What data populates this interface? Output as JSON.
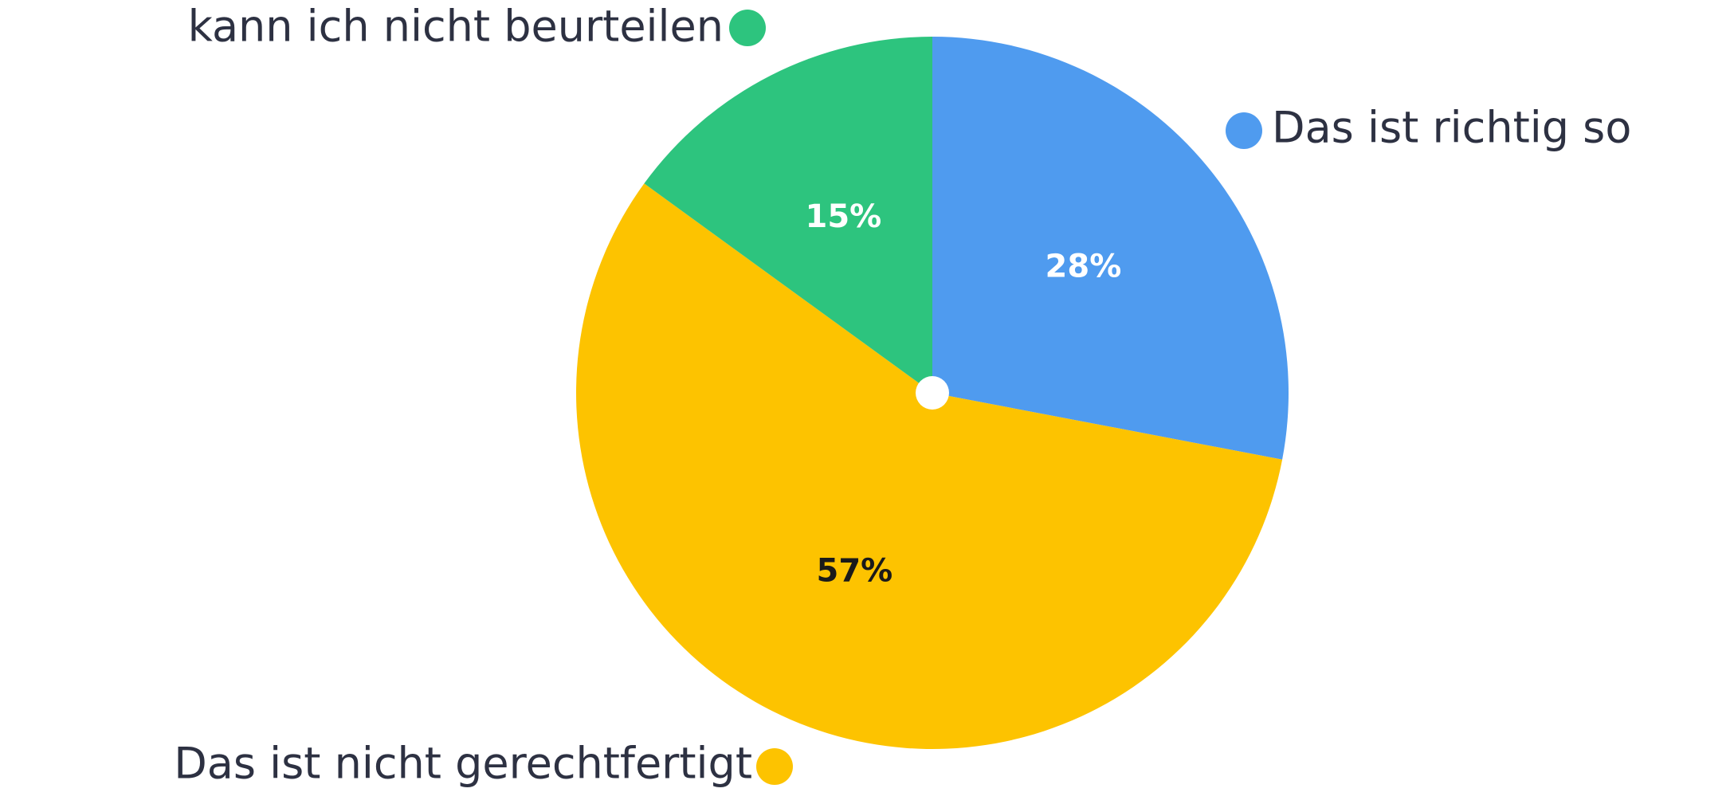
{
  "chart_data": {
    "type": "pie",
    "categories": [
      "Das ist richtig so",
      "Das ist nicht gerechtfertigt",
      "kann ich nicht beurteilen"
    ],
    "values": [
      28,
      57,
      15
    ],
    "value_labels": [
      "28%",
      "57%",
      "15%"
    ],
    "colors": [
      "#4f9bef",
      "#fdc300",
      "#2dc47e"
    ]
  }
}
